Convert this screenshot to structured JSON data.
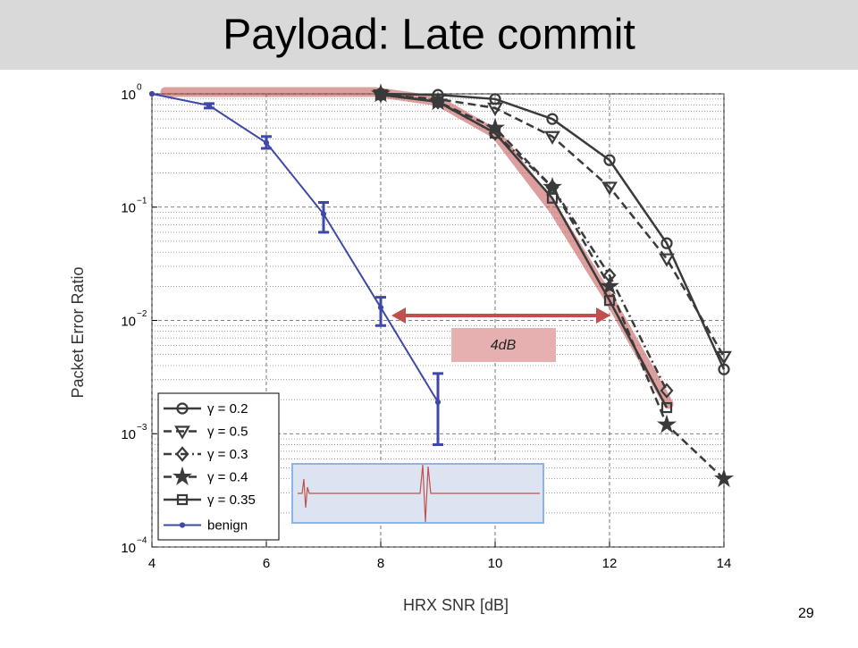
{
  "title": "Payload: Late commit",
  "page_number": "29",
  "chart_data": {
    "type": "line",
    "x_label": "HRX SNR [dB]",
    "y_label": "Packet Error Ratio",
    "xlim": [
      4,
      14
    ],
    "xticks": [
      4,
      6,
      8,
      10,
      12,
      14
    ],
    "ylim": [
      0.0001,
      1
    ],
    "y_scale": "log",
    "yticks": [
      {
        "value": 1,
        "label": "10",
        "exponent": "0"
      },
      {
        "value": 0.1,
        "label": "10",
        "exponent": "−1"
      },
      {
        "value": 0.01,
        "label": "10",
        "exponent": "−2"
      },
      {
        "value": 0.001,
        "label": "10",
        "exponent": "−3"
      },
      {
        "value": 0.0001,
        "label": "10",
        "exponent": "−4"
      }
    ],
    "grid": true,
    "legend": "lower left",
    "annotation": "4dB",
    "series": [
      {
        "name": "γ = 0.2",
        "color": "#3a3a3a",
        "marker": "circle",
        "line": "solid",
        "x": [
          8,
          9,
          10,
          11,
          12,
          13,
          14
        ],
        "values": [
          1,
          0.98,
          0.9,
          0.6,
          0.26,
          0.048,
          0.0037
        ]
      },
      {
        "name": "γ = 0.5",
        "color": "#3a3a3a",
        "marker": "triangle",
        "line": "dashed",
        "x": [
          8,
          9,
          10,
          11,
          12,
          13,
          14
        ],
        "values": [
          0.98,
          0.9,
          0.75,
          0.42,
          0.15,
          0.035,
          0.0048
        ]
      },
      {
        "name": "γ = 0.3",
        "color": "#3a3a3a",
        "marker": "diamond",
        "line": "dashdot",
        "x": [
          8,
          9,
          10,
          11,
          12,
          13
        ],
        "values": [
          1,
          0.85,
          0.45,
          0.15,
          0.025,
          0.0024
        ]
      },
      {
        "name": "γ = 0.4",
        "color": "#3a3a3a",
        "marker": "star",
        "line": "dashed",
        "x": [
          8,
          9,
          10,
          11,
          12,
          13,
          14
        ],
        "values": [
          1,
          0.85,
          0.5,
          0.15,
          0.02,
          0.0012,
          0.0004
        ]
      },
      {
        "name": "γ = 0.35",
        "color": "#3a3a3a",
        "marker": "square",
        "line": "solid",
        "x": [
          8,
          9,
          10,
          11,
          12,
          13
        ],
        "values": [
          0.98,
          0.85,
          0.45,
          0.12,
          0.015,
          0.0017
        ]
      },
      {
        "name": "benign",
        "color": "#3f48a8",
        "marker": "dot",
        "line": "solid",
        "x": [
          4,
          5,
          6,
          7,
          8,
          9
        ],
        "values": [
          1,
          0.79,
          0.37,
          0.087,
          0.013,
          0.0019
        ],
        "error_low": [
          null,
          0.75,
          0.33,
          0.06,
          0.009,
          0.0008
        ],
        "error_high": [
          null,
          0.82,
          0.42,
          0.11,
          0.016,
          0.0034
        ]
      }
    ]
  }
}
